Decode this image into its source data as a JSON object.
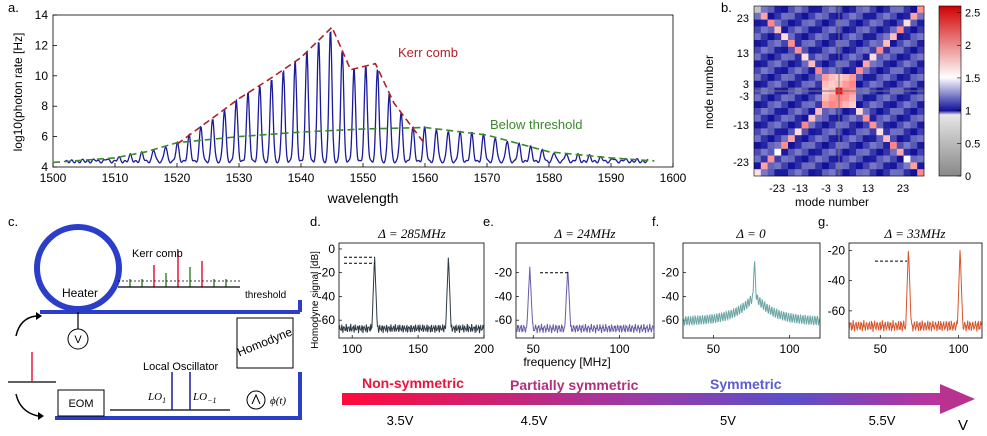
{
  "panel_letters": {
    "a": "a.",
    "b": "b.",
    "c": "c.",
    "d": "d.",
    "e": "e.",
    "f": "f.",
    "g": "g."
  },
  "colors": {
    "spectrum_line": "#1a1a9c",
    "kerr_envelope": "#b0202a",
    "below_envelope": "#3a8a2a",
    "d_trace": "#2d3a44",
    "e_trace": "#6a5aa8",
    "f_trace": "#6aa6a4",
    "g_trace": "#d8552c",
    "ring": "#2b3ec9",
    "arrow_start": "#e8163c",
    "arrow_end": "#b8328f"
  },
  "chart_data": [
    {
      "id": "a",
      "type": "line",
      "title": "",
      "xlabel": "wavelength",
      "ylabel": "log10(photon rate [Hz]",
      "xlim": [
        1500,
        1600
      ],
      "ylim": [
        4,
        14
      ],
      "xticks": [
        1500,
        1510,
        1520,
        1530,
        1540,
        1550,
        1560,
        1570,
        1580,
        1590,
        1600
      ],
      "yticks": [
        4,
        6,
        8,
        10,
        12,
        14
      ],
      "comb": {
        "x_start": 1502,
        "x_end": 1596,
        "spacing": 1.9
      },
      "series": [
        {
          "name": "Kerr comb",
          "x": [
            1520,
            1525,
            1530,
            1535,
            1540,
            1545,
            1548,
            1552,
            1555,
            1560
          ],
          "y": [
            5.5,
            7.0,
            8.5,
            9.8,
            11.2,
            13.2,
            10.4,
            10.8,
            8.2,
            5.5
          ]
        },
        {
          "name": "Below threshold",
          "x": [
            1500,
            1510,
            1515,
            1520,
            1530,
            1540,
            1550,
            1560,
            1570,
            1580,
            1590,
            1597
          ],
          "y": [
            4.3,
            4.6,
            5.0,
            5.6,
            6.0,
            6.3,
            6.5,
            6.6,
            6.1,
            5.0,
            4.6,
            4.4
          ]
        }
      ],
      "annotations": [
        "Kerr comb",
        "Below threshold"
      ]
    },
    {
      "id": "b",
      "type": "heatmap",
      "xlabel": "mode number",
      "ylabel": "mode number",
      "xticks": [
        "-23",
        "-13",
        "-3",
        "3",
        "13",
        "23"
      ],
      "yticks": [
        "23",
        "13",
        "3",
        "-3",
        "-13",
        "-23"
      ],
      "colorbar_ticks": [
        "2.5",
        "2",
        "1.5",
        "1",
        "0.5",
        "0"
      ],
      "clim": [
        0,
        2.6
      ]
    },
    {
      "id": "d",
      "type": "line",
      "title": "Δ = 285MHz",
      "ylabel": "Homodyne signal [dB]",
      "xticks": [
        "100",
        "150",
        "200"
      ],
      "yticks": [
        "0",
        "-20",
        "-40",
        "-60"
      ],
      "xlim": [
        90,
        200
      ],
      "ylim": [
        -75,
        5
      ],
      "peaks": [
        117,
        173
      ]
    },
    {
      "id": "e",
      "type": "line",
      "title": "Δ = 24MHz",
      "yticks": [
        "-20",
        "-40",
        "-60"
      ],
      "xticks": [
        "50",
        "100"
      ],
      "xlim": [
        40,
        120
      ],
      "ylim": [
        -75,
        5
      ],
      "peaks": [
        48,
        70
      ]
    },
    {
      "id": "f",
      "type": "line",
      "title": "Δ = 0",
      "yticks": [
        "-20",
        "-40",
        "-60"
      ],
      "xticks": [
        "50",
        "100"
      ],
      "xlim": [
        30,
        120
      ],
      "ylim": [
        -75,
        5
      ],
      "peaks": [
        77
      ]
    },
    {
      "id": "g",
      "type": "line",
      "title": "Δ = 33MHz",
      "yticks": [
        "-20",
        "-40",
        "-60"
      ],
      "xticks": [
        "50",
        "100"
      ],
      "xlim": [
        30,
        115
      ],
      "ylim": [
        -78,
        -15
      ],
      "peaks": [
        68,
        101
      ]
    }
  ],
  "freq_axis_label": "frequency [MHz]",
  "schematic": {
    "kerr_comb": "Kerr comb",
    "threshold": "threshold",
    "heater": "Heater",
    "voltage": "V",
    "local_oscillator": "Local Oscillator",
    "lo1": "LO",
    "lo1_sub": "1",
    "lom1": "LO",
    "lom1_sub": "−1",
    "homodyne": "Homodyne",
    "eom": "EOM",
    "phase": "ϕ(t)"
  },
  "symmetry_bar": {
    "labels": [
      "Non-symmetric",
      "Partially symmetric",
      "Symmetric"
    ],
    "voltages": [
      "3.5V",
      "4.5V",
      "5V",
      "5.5V"
    ],
    "axis": "V"
  }
}
